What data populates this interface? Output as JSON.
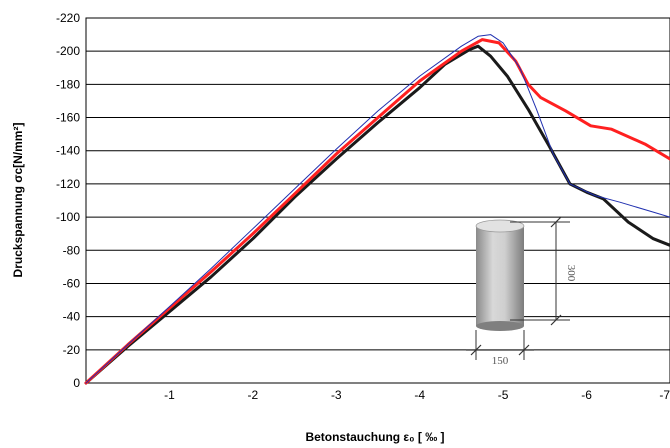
{
  "chart_data": {
    "type": "line",
    "xlabel": "Betonstauchung ε₀ [ ‰ ]",
    "ylabel": "Druckspannung σc[N/mm²]",
    "xlim": [
      0,
      -7
    ],
    "ylim": [
      0,
      -220
    ],
    "x_ticks": [
      -1,
      -2,
      -3,
      -4,
      -5,
      -6,
      -7
    ],
    "x_tick_labels": [
      "-1",
      "-2",
      "-3",
      "-4",
      "-5",
      "-6",
      "-7"
    ],
    "y_ticks": [
      0,
      -20,
      -40,
      -60,
      -80,
      -100,
      -120,
      -140,
      -160,
      -180,
      -200,
      -220
    ],
    "y_tick_labels": [
      "0",
      "-20",
      "-40",
      "-60",
      "-80",
      "-100",
      "-120",
      "-140",
      "-160",
      "-180",
      "-200",
      "-220"
    ],
    "grid": "horizontal",
    "series": [
      {
        "color": "#1a1a1a",
        "width": 3,
        "points": [
          [
            0,
            0
          ],
          [
            -0.5,
            -22
          ],
          [
            -1,
            -43
          ],
          [
            -1.5,
            -64
          ],
          [
            -2,
            -87
          ],
          [
            -2.5,
            -112
          ],
          [
            -3,
            -135
          ],
          [
            -3.5,
            -157
          ],
          [
            -4,
            -178
          ],
          [
            -4.3,
            -192
          ],
          [
            -4.6,
            -201
          ],
          [
            -4.7,
            -203
          ],
          [
            -4.85,
            -197
          ],
          [
            -5.05,
            -185
          ],
          [
            -5.3,
            -165
          ],
          [
            -5.55,
            -143
          ],
          [
            -5.8,
            -120
          ],
          [
            -6.0,
            -115
          ],
          [
            -6.2,
            -111
          ],
          [
            -6.5,
            -97
          ],
          [
            -6.8,
            -87
          ],
          [
            -7,
            -83
          ]
        ]
      },
      {
        "color": "#ff2020",
        "width": 3,
        "points": [
          [
            0,
            0
          ],
          [
            -0.5,
            -23
          ],
          [
            -1,
            -45
          ],
          [
            -1.5,
            -67
          ],
          [
            -2,
            -90
          ],
          [
            -2.5,
            -114
          ],
          [
            -3,
            -138
          ],
          [
            -3.5,
            -160
          ],
          [
            -4,
            -182
          ],
          [
            -4.5,
            -200
          ],
          [
            -4.75,
            -207
          ],
          [
            -4.95,
            -205
          ],
          [
            -5.15,
            -194
          ],
          [
            -5.3,
            -180
          ],
          [
            -5.45,
            -172
          ],
          [
            -5.75,
            -164
          ],
          [
            -6.05,
            -155
          ],
          [
            -6.3,
            -153
          ],
          [
            -6.7,
            -144
          ],
          [
            -7,
            -135
          ]
        ]
      },
      {
        "color": "#2030b0",
        "width": 1,
        "points": [
          [
            0,
            0
          ],
          [
            -0.5,
            -23
          ],
          [
            -1,
            -46
          ],
          [
            -1.5,
            -69
          ],
          [
            -2,
            -93
          ],
          [
            -2.5,
            -117
          ],
          [
            -3,
            -141
          ],
          [
            -3.5,
            -164
          ],
          [
            -4,
            -185
          ],
          [
            -4.5,
            -203
          ],
          [
            -4.7,
            -209
          ],
          [
            -4.85,
            -210
          ],
          [
            -5.0,
            -205
          ],
          [
            -5.2,
            -190
          ],
          [
            -5.4,
            -165
          ],
          [
            -5.6,
            -138
          ],
          [
            -5.8,
            -120
          ],
          [
            -6.1,
            -113
          ],
          [
            -6.4,
            -109
          ],
          [
            -6.8,
            -103
          ],
          [
            -7,
            -100
          ]
        ]
      }
    ],
    "annotation": {
      "height_label": "300",
      "diameter_label": "150"
    }
  }
}
